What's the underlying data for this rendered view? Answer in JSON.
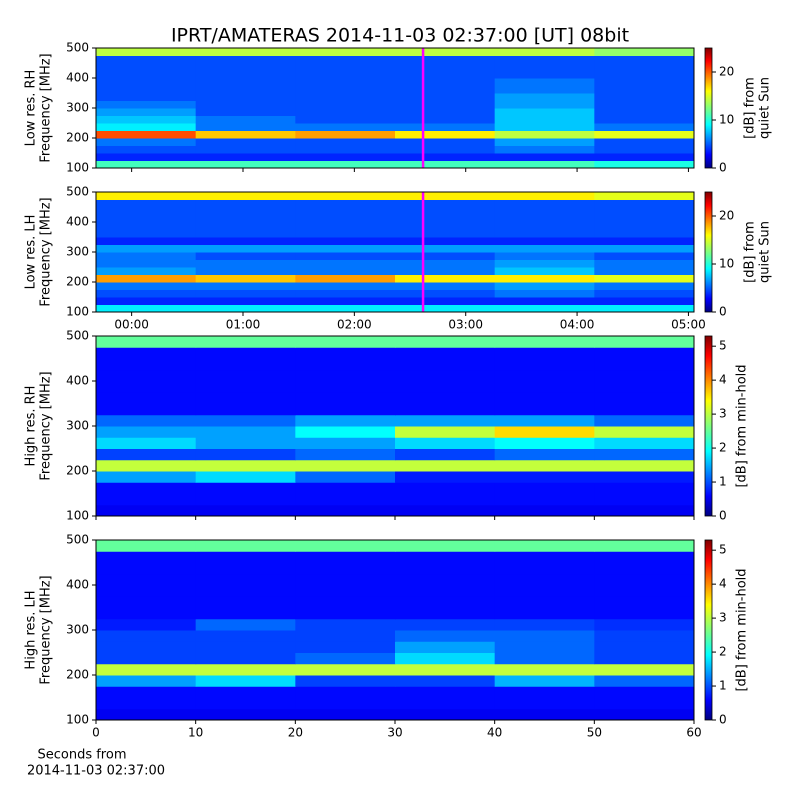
{
  "chart_data": [
    {
      "type": "heatmap",
      "title": "IPRT/AMATERAS 2014-11-03 02:37:00 [UT]   08bit",
      "ylabel": [
        "Low res. RH",
        "Frequency [MHz]"
      ],
      "xlim": [
        -0.32,
        5.05
      ],
      "xticks": [
        0,
        1,
        2,
        3,
        4,
        5
      ],
      "tick_labels": false,
      "ylim": [
        100,
        500
      ],
      "yticks": [
        100,
        200,
        300,
        400,
        500
      ],
      "x": [
        0.13,
        1.02,
        1.92,
        2.81,
        3.71,
        4.6
      ],
      "y": [
        112.5,
        137.5,
        162.5,
        187.5,
        212.5,
        237.5,
        262.5,
        287.5,
        312.5,
        337.5,
        362.5,
        387.5,
        412.5,
        437.5,
        462.5,
        487.5
      ],
      "z": [
        [
          11,
          11,
          11,
          11,
          11,
          10
        ],
        [
          4,
          4,
          4,
          4,
          4,
          4
        ],
        [
          5,
          5,
          5,
          5,
          6,
          5
        ],
        [
          6,
          5,
          5,
          5,
          7,
          5
        ],
        [
          20,
          17,
          18,
          16,
          14,
          15
        ],
        [
          9,
          6,
          6,
          6,
          8,
          6
        ],
        [
          8,
          6,
          5,
          5,
          8,
          5
        ],
        [
          7,
          5,
          5,
          5,
          8,
          5
        ],
        [
          6,
          5,
          5,
          5,
          7,
          5
        ],
        [
          5,
          5,
          5,
          5,
          7,
          5
        ],
        [
          5,
          5,
          5,
          5,
          6,
          5
        ],
        [
          5,
          5,
          5,
          5,
          6,
          5
        ],
        [
          5,
          5,
          5,
          5,
          5,
          5
        ],
        [
          5,
          5,
          5,
          5,
          5,
          5
        ],
        [
          5,
          5,
          5,
          5,
          5,
          5
        ],
        [
          14,
          14,
          14,
          14,
          14,
          13
        ]
      ],
      "zlim": [
        0,
        25
      ],
      "zticks": [
        0,
        10,
        20
      ],
      "colorbar_label": [
        "[dB] from",
        "quiet Sun"
      ],
      "vline": 2.617,
      "vline_color": "#ff00ff"
    },
    {
      "type": "heatmap",
      "ylabel": [
        "Low res. LH",
        "Frequency [MHz]"
      ],
      "xlim": [
        -0.32,
        5.05
      ],
      "xticks": [
        {
          "value": 0,
          "label": "00:00"
        },
        {
          "value": 1,
          "label": "01:00"
        },
        {
          "value": 2,
          "label": "02:00"
        },
        {
          "value": 3,
          "label": "03:00"
        },
        {
          "value": 4,
          "label": "04:00"
        },
        {
          "value": 5,
          "label": "05:00"
        }
      ],
      "ylim": [
        100,
        500
      ],
      "yticks": [
        100,
        200,
        300,
        400,
        500
      ],
      "x": [
        0.13,
        1.02,
        1.92,
        2.81,
        3.71,
        4.6
      ],
      "y": [
        112.5,
        137.5,
        162.5,
        187.5,
        212.5,
        237.5,
        262.5,
        287.5,
        312.5,
        337.5,
        362.5,
        387.5,
        412.5,
        437.5,
        462.5,
        487.5
      ],
      "z": [
        [
          9,
          9,
          9,
          9,
          9,
          9
        ],
        [
          4,
          4,
          4,
          4,
          4,
          4
        ],
        [
          5,
          5,
          5,
          5,
          6,
          5
        ],
        [
          6,
          6,
          6,
          6,
          7,
          6
        ],
        [
          18,
          17,
          18,
          16,
          16,
          15
        ],
        [
          7,
          6,
          6,
          6,
          8,
          6
        ],
        [
          6,
          6,
          6,
          6,
          7,
          6
        ],
        [
          6,
          5,
          5,
          5,
          6,
          5
        ],
        [
          7,
          7,
          7,
          7,
          7,
          7
        ],
        [
          4,
          4,
          4,
          4,
          4,
          4
        ],
        [
          5,
          5,
          5,
          5,
          5,
          5
        ],
        [
          5,
          5,
          5,
          5,
          5,
          5
        ],
        [
          5,
          5,
          5,
          5,
          5,
          5
        ],
        [
          5,
          5,
          5,
          5,
          5,
          5
        ],
        [
          5,
          5,
          5,
          5,
          5,
          5
        ],
        [
          16,
          16,
          16,
          16,
          16,
          15
        ]
      ],
      "zlim": [
        0,
        25
      ],
      "zticks": [
        0,
        10,
        20
      ],
      "colorbar_label": [
        "[dB] from",
        "quiet Sun"
      ],
      "vline": 2.617,
      "vline_color": "#ff00ff"
    },
    {
      "type": "heatmap",
      "ylabel": [
        "High res. RH",
        "Frequency [MHz]"
      ],
      "xlim": [
        0,
        60
      ],
      "xticks": [
        0,
        10,
        20,
        30,
        40,
        50,
        60
      ],
      "tick_labels": false,
      "ylim": [
        100,
        500
      ],
      "yticks": [
        100,
        200,
        300,
        400,
        500
      ],
      "x": [
        5,
        15,
        25,
        35,
        45,
        55
      ],
      "y": [
        112.5,
        137.5,
        162.5,
        187.5,
        212.5,
        237.5,
        262.5,
        287.5,
        312.5,
        337.5,
        362.5,
        387.5,
        412.5,
        437.5,
        462.5,
        487.5
      ],
      "z": [
        [
          0.6,
          0.6,
          0.6,
          0.6,
          0.6,
          0.6
        ],
        [
          0.7,
          0.7,
          0.7,
          0.7,
          0.7,
          0.7
        ],
        [
          0.7,
          0.7,
          0.7,
          0.7,
          0.7,
          0.7
        ],
        [
          1.5,
          1.8,
          1.2,
          0.8,
          0.8,
          0.8
        ],
        [
          3,
          3,
          3,
          3,
          3,
          3
        ],
        [
          1,
          1,
          1.2,
          1,
          1.2,
          1.2
        ],
        [
          1.8,
          1.5,
          1.5,
          1.8,
          2,
          1.8
        ],
        [
          1.5,
          1.5,
          2,
          3,
          3.5,
          3
        ],
        [
          1.2,
          1.2,
          1.5,
          1.5,
          1.5,
          1.2
        ],
        [
          0.7,
          0.7,
          0.7,
          0.7,
          0.7,
          0.7
        ],
        [
          0.7,
          0.7,
          0.7,
          0.7,
          0.7,
          0.7
        ],
        [
          0.7,
          0.7,
          0.7,
          0.7,
          0.7,
          0.7
        ],
        [
          0.7,
          0.7,
          0.7,
          0.7,
          0.7,
          0.7
        ],
        [
          0.7,
          0.7,
          0.7,
          0.7,
          0.7,
          0.7
        ],
        [
          0.7,
          0.7,
          0.7,
          0.7,
          0.7,
          0.7
        ],
        [
          2.5,
          2.5,
          2.5,
          2.5,
          2.5,
          2.5
        ]
      ],
      "zlim": [
        0,
        5.3
      ],
      "zticks": [
        0,
        1,
        2,
        3,
        4,
        5
      ],
      "colorbar_label": [
        "[dB] from min-hold"
      ]
    },
    {
      "type": "heatmap",
      "ylabel": [
        "High res. LH",
        "Frequency [MHz]"
      ],
      "xlabel": [
        "Seconds from",
        "2014-11-03 02:37:00"
      ],
      "xlim": [
        0,
        60
      ],
      "xticks": [
        0,
        10,
        20,
        30,
        40,
        50,
        60
      ],
      "ylim": [
        100,
        500
      ],
      "yticks": [
        100,
        200,
        300,
        400,
        500
      ],
      "x": [
        5,
        15,
        25,
        35,
        45,
        55
      ],
      "y": [
        112.5,
        137.5,
        162.5,
        187.5,
        212.5,
        237.5,
        262.5,
        287.5,
        312.5,
        337.5,
        362.5,
        387.5,
        412.5,
        437.5,
        462.5,
        487.5
      ],
      "z": [
        [
          0.6,
          0.6,
          0.6,
          0.6,
          0.6,
          0.6
        ],
        [
          0.7,
          0.7,
          0.7,
          0.7,
          0.7,
          0.7
        ],
        [
          0.7,
          0.7,
          0.7,
          0.7,
          0.7,
          0.7
        ],
        [
          1.5,
          1.8,
          1,
          1,
          1.6,
          1.2
        ],
        [
          3,
          3,
          3,
          3,
          3,
          3
        ],
        [
          1,
          1,
          1.2,
          1.8,
          1.2,
          1
        ],
        [
          1,
          1,
          1,
          1.5,
          1.2,
          1
        ],
        [
          1,
          1,
          1,
          1.2,
          1.2,
          1
        ],
        [
          0.8,
          1.2,
          1,
          1,
          1,
          0.9
        ],
        [
          0.7,
          0.7,
          0.7,
          0.7,
          0.7,
          0.7
        ],
        [
          0.7,
          0.7,
          0.7,
          0.7,
          0.7,
          0.7
        ],
        [
          0.7,
          0.7,
          0.7,
          0.7,
          0.7,
          0.7
        ],
        [
          0.7,
          0.7,
          0.7,
          0.7,
          0.7,
          0.7
        ],
        [
          0.7,
          0.7,
          0.7,
          0.7,
          0.7,
          0.7
        ],
        [
          0.7,
          0.7,
          0.7,
          0.7,
          0.7,
          0.7
        ],
        [
          2.5,
          2.5,
          2.5,
          2.5,
          2.5,
          2.5
        ]
      ],
      "zlim": [
        0,
        5.3
      ],
      "zticks": [
        0,
        1,
        2,
        3,
        4,
        5
      ],
      "colorbar_label": [
        "[dB] from min-hold"
      ]
    }
  ]
}
